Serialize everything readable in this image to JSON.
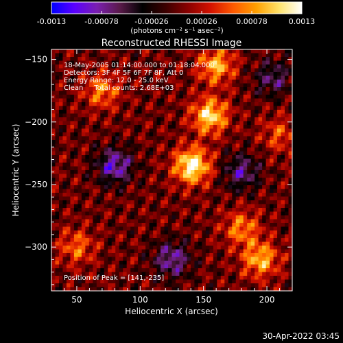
{
  "colorbar": {
    "tick_labels": [
      "-0.0013",
      "-0.00078",
      "-0.00026",
      "0.00026",
      "0.00078",
      "0.0013"
    ],
    "tick_values": [
      -0.0013,
      -0.00078,
      -0.00026,
      0.00026,
      0.00078,
      0.0013
    ],
    "range": [
      -0.0013,
      0.0013
    ],
    "unit_label": "(photons cm⁻² s⁻¹ asec⁻²)",
    "colors": [
      "#0000ff",
      "#5a00ff",
      "#7a1fb0",
      "#5a1a4a",
      "#000000",
      "#3a0000",
      "#8a0000",
      "#d41200",
      "#ff5a00",
      "#ffa000",
      "#ffe36a",
      "#ffffff"
    ]
  },
  "chart_data": {
    "type": "heatmap",
    "title": "Reconstructed RHESSI Image",
    "xlabel": "Heliocentric X (arcsec)",
    "ylabel": "Heliocentric Y (arcsec)",
    "xlim": [
      30,
      220
    ],
    "ylim": [
      -335,
      -142
    ],
    "x_ticks": [
      50,
      100,
      150,
      200
    ],
    "x_tick_labels": [
      "50",
      "100",
      "150",
      "200"
    ],
    "y_ticks": [
      -150,
      -200,
      -250,
      -300
    ],
    "y_tick_labels": [
      "−150",
      "−200",
      "−250",
      "−300"
    ],
    "annotations": [
      "18-May-2005 01:14:00.000 to 01:18:04.000",
      "Detectors: 3F 4F 5F 6F 7F 8F, Att 0",
      "Energy Range: 12.0 - 25.0 keV",
      "Clean     Total counts: 2.68E+03"
    ],
    "peak_label": "Position of Peak = [141,-235]",
    "peak": [
      141,
      -235
    ],
    "bright_sources": [
      {
        "x": 141,
        "y": -235,
        "value": 0.0013
      },
      {
        "x": 155,
        "y": -195,
        "value": 0.0011
      },
      {
        "x": 160,
        "y": -155,
        "value": 0.0009
      },
      {
        "x": 195,
        "y": -310,
        "value": 0.0009
      },
      {
        "x": 180,
        "y": -285,
        "value": 0.0007
      },
      {
        "x": 70,
        "y": -175,
        "value": 0.0007
      },
      {
        "x": 50,
        "y": -300,
        "value": 0.0006
      },
      {
        "x": 210,
        "y": -210,
        "value": 0.0005
      }
    ],
    "dark_sources": [
      {
        "x": 80,
        "y": -235,
        "value": -0.0009
      },
      {
        "x": 125,
        "y": -310,
        "value": -0.0008
      },
      {
        "x": 205,
        "y": -165,
        "value": -0.0006
      },
      {
        "x": 180,
        "y": -240,
        "value": -0.0007
      }
    ]
  },
  "footer": {
    "timestamp": "30-Apr-2022 03:45"
  }
}
